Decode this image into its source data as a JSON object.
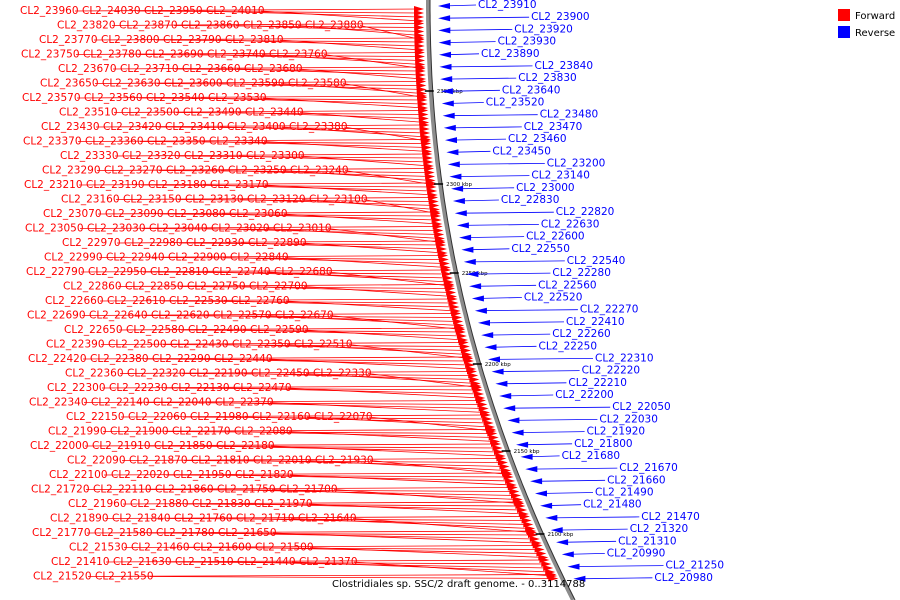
{
  "legend": {
    "forward_label": "Forward",
    "reverse_label": "Reverse",
    "forward_color": "#ff0000",
    "reverse_color": "#0000ff"
  },
  "caption": "Clostridiales sp. SSC/2 draft genome. - 0..3114788",
  "scale_ticks": [
    "2350 kbp",
    "2300 kbp",
    "2250 kbp",
    "2200 kbp",
    "2150 kbp",
    "2100 kbp"
  ],
  "forward_genes": [
    "CL2_23960",
    "CL2_24030",
    "CL2_23950",
    "CL2_24010",
    "CL2_23820",
    "CL2_23870",
    "CL2_23860",
    "CL2_23850",
    "CL2_23880",
    "CL2_23770",
    "CL2_23800",
    "CL2_23790",
    "CL2_23810",
    "CL2_23750",
    "CL2_23780",
    "CL2_23690",
    "CL2_23740",
    "CL2_23760",
    "CL2_23670",
    "CL2_23710",
    "CL2_23660",
    "CL2_23680",
    "CL2_23650",
    "CL2_23630",
    "CL2_23600",
    "CL2_23590",
    "CL2_23580",
    "CL2_23570",
    "CL2_23560",
    "CL2_23540",
    "CL2_23530",
    "CL2_23510",
    "CL2_23500",
    "CL2_23490",
    "CL2_23440",
    "CL2_23430",
    "CL2_23420",
    "CL2_23410",
    "CL2_23400",
    "CL2_23380",
    "CL2_23370",
    "CL2_23360",
    "CL2_23350",
    "CL2_23340",
    "CL2_23330",
    "CL2_23320",
    "CL2_23310",
    "CL2_23300",
    "CL2_23290",
    "CL2_23270",
    "CL2_23260",
    "CL2_23250",
    "CL2_23240",
    "CL2_23210",
    "CL2_23190",
    "CL2_23180",
    "CL2_23170",
    "CL2_23160",
    "CL2_23150",
    "CL2_23130",
    "CL2_23120",
    "CL2_23100",
    "CL2_23070",
    "CL2_23090",
    "CL2_23080",
    "CL2_23060",
    "CL2_23050",
    "CL2_23030",
    "CL2_23040",
    "CL2_23020",
    "CL2_23010",
    "CL2_22970",
    "CL2_22980",
    "CL2_22930",
    "CL2_22890",
    "CL2_22990",
    "CL2_22940",
    "CL2_22900",
    "CL2_22840",
    "CL2_22790",
    "CL2_22950",
    "CL2_22810",
    "CL2_22740",
    "CL2_22680",
    "CL2_22860",
    "CL2_22850",
    "CL2_22750",
    "CL2_22700",
    "CL2_22660",
    "CL2_22610",
    "CL2_22530",
    "CL2_22760",
    "CL2_22690",
    "CL2_22640",
    "CL2_22620",
    "CL2_22570",
    "CL2_22670",
    "CL2_22650",
    "CL2_22580",
    "CL2_22490",
    "CL2_22590",
    "CL2_22390",
    "CL2_22500",
    "CL2_22430",
    "CL2_22350",
    "CL2_22510",
    "CL2_22420",
    "CL2_22380",
    "CL2_22290",
    "CL2_22440",
    "CL2_22360",
    "CL2_22320",
    "CL2_22190",
    "CL2_22450",
    "CL2_22330",
    "CL2_22300",
    "CL2_22230",
    "CL2_22130",
    "CL2_22470",
    "CL2_22340",
    "CL2_22140",
    "CL2_22040",
    "CL2_22370",
    "CL2_22150",
    "CL2_22060",
    "CL2_21980",
    "CL2_22160",
    "CL2_22070",
    "CL2_21990",
    "CL2_21900",
    "CL2_22170",
    "CL2_22080",
    "CL2_22000",
    "CL2_21910",
    "CL2_21850",
    "CL2_22180",
    "CL2_22090",
    "CL2_21870",
    "CL2_21810",
    "CL2_22010",
    "CL2_21930",
    "CL2_22100",
    "CL2_22020",
    "CL2_21950",
    "CL2_21820",
    "CL2_21720",
    "CL2_22110",
    "CL2_21860",
    "CL2_21750",
    "CL2_21700",
    "CL2_21960",
    "CL2_21880",
    "CL2_21830",
    "CL2_21970",
    "CL2_21890",
    "CL2_21840",
    "CL2_21760",
    "CL2_21710",
    "CL2_21640",
    "CL2_21770",
    "CL2_21580",
    "CL2_21780",
    "CL2_21650",
    "CL2_21530",
    "CL2_21460",
    "CL2_21600",
    "CL2_21500",
    "CL2_21410",
    "CL2_21630",
    "CL2_21510",
    "CL2_21440",
    "CL2_21370",
    "CL2_21520",
    "CL2_21550"
  ],
  "reverse_genes": [
    "CL2_23910",
    "CL2_23900",
    "CL2_23920",
    "CL2_23930",
    "CL2_23890",
    "CL2_23840",
    "CL2_23830",
    "CL2_23640",
    "CL2_23520",
    "CL2_23480",
    "CL2_23470",
    "CL2_23460",
    "CL2_23450",
    "CL2_23200",
    "CL2_23140",
    "CL2_23000",
    "CL2_22830",
    "CL2_22820",
    "CL2_22630",
    "CL2_22600",
    "CL2_22550",
    "CL2_22540",
    "CL2_22280",
    "CL2_22560",
    "CL2_22520",
    "CL2_22270",
    "CL2_22410",
    "CL2_22260",
    "CL2_22250",
    "CL2_22310",
    "CL2_22220",
    "CL2_22210",
    "CL2_22200",
    "CL2_22050",
    "CL2_22030",
    "CL2_21920",
    "CL2_21800",
    "CL2_21680",
    "CL2_21670",
    "CL2_21660",
    "CL2_21490",
    "CL2_21480",
    "CL2_21470",
    "CL2_21320",
    "CL2_21310",
    "CL2_20990",
    "CL2_21250",
    "CL2_20980"
  ]
}
